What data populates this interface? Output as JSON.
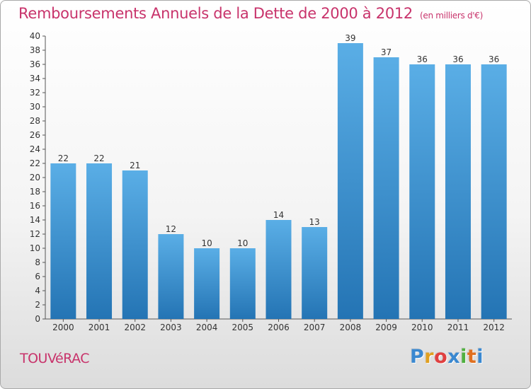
{
  "header": {
    "title": "Remboursements Annuels de la Dette de 2000 à 2012",
    "unit": "(en milliers d'€)"
  },
  "footer": {
    "commune": "TOUVéRAC",
    "logo_letters": [
      "P",
      "r",
      "o",
      "x",
      "i",
      "t",
      "i"
    ],
    "logo_colors": [
      "#3a88d0",
      "#e0a020",
      "#e04040",
      "#3a88d0",
      "#50b040",
      "#e07020",
      "#3a88d0"
    ]
  },
  "colors": {
    "title": "#c8336b",
    "bar_light": "#5aaee6",
    "bar_dark": "#2474b4",
    "axis": "#555555",
    "label": "#333333"
  },
  "chart_data": {
    "type": "bar",
    "title": "Remboursements Annuels de la Dette de 2000 à 2012",
    "subtitle": "(en milliers d'€)",
    "xlabel": "",
    "ylabel": "",
    "categories": [
      "2000",
      "2001",
      "2002",
      "2003",
      "2004",
      "2005",
      "2006",
      "2007",
      "2008",
      "2009",
      "2010",
      "2011",
      "2012"
    ],
    "values": [
      22,
      22,
      21,
      12,
      10,
      10,
      14,
      13,
      39,
      37,
      36,
      36,
      36
    ],
    "ylim": [
      0,
      40
    ],
    "yticks": [
      0,
      2,
      4,
      6,
      8,
      10,
      12,
      14,
      16,
      18,
      20,
      22,
      24,
      26,
      28,
      30,
      32,
      34,
      36,
      38,
      40
    ],
    "grid": false,
    "legend": "none",
    "data_labels": true
  }
}
